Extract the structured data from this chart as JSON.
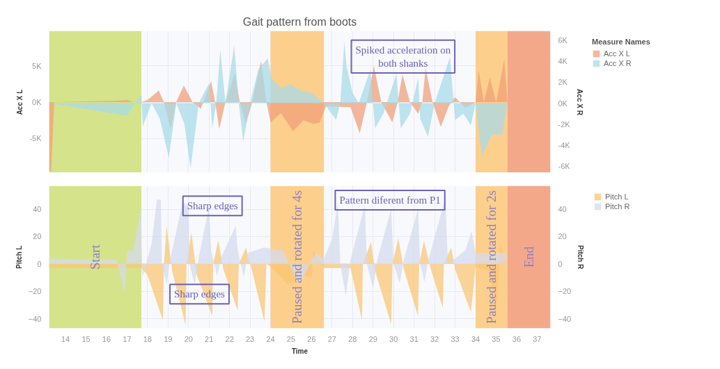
{
  "chart_data": [
    {
      "type": "area",
      "title": "Gait pattern from boots",
      "ylabel": "Acc X L",
      "y2label": "Acc X R",
      "legend_title": "Measure Names",
      "legend": "right",
      "grid": true,
      "tick_labels": "y",
      "xlim": [
        13.2,
        37.65
      ],
      "xticks": [
        14,
        15,
        16,
        17,
        18,
        19,
        20,
        21,
        22,
        23,
        24,
        25,
        26,
        27,
        28,
        29,
        30,
        31,
        32,
        33,
        34,
        35,
        36,
        37
      ],
      "ylim": [
        -9800,
        9800
      ],
      "yticks": [
        {
          "value": -5000,
          "label": "-5K"
        },
        {
          "value": 0,
          "label": "0K"
        },
        {
          "value": 5000,
          "label": "5K"
        }
      ],
      "y2lim": [
        -6700,
        6900
      ],
      "y2ticks": [
        {
          "value": -6000,
          "label": "-6K"
        },
        {
          "value": -4000,
          "label": "-4K"
        },
        {
          "value": -2000,
          "label": "-2K"
        },
        {
          "value": 0,
          "label": "0K"
        },
        {
          "value": 2000,
          "label": "2K"
        },
        {
          "value": 4000,
          "label": "4K"
        },
        {
          "value": 6000,
          "label": "6K"
        }
      ],
      "bands": [
        {
          "axis": "x",
          "from": 13.2,
          "to": 17.7,
          "color": "#d5e38b"
        },
        {
          "axis": "x",
          "from": 24.0,
          "to": 26.6,
          "color": "#fdcf8c"
        },
        {
          "axis": "x",
          "from": 34.0,
          "to": 35.55,
          "color": "#fdcf8c"
        },
        {
          "axis": "x",
          "from": 35.55,
          "to": 37.65,
          "color": "#f4a88a"
        }
      ],
      "annotations": [
        "Spiked acceleration on\nboth shanks"
      ],
      "series": [
        {
          "name": "Acc X L",
          "color": "#f0a07a",
          "x": [
            13.2,
            13.3,
            13.45,
            13.6,
            16.5,
            17.0,
            17.3,
            17.7,
            18.0,
            18.55,
            18.8,
            19.13,
            19.4,
            19.77,
            20.2,
            20.6,
            21.1,
            21.3,
            21.5,
            21.8,
            22.26,
            22.5,
            22.8,
            23.1,
            23.54,
            23.8,
            24.0,
            24.5,
            25.1,
            25.6,
            26.1,
            26.4,
            26.7,
            27.9,
            28.35,
            28.7,
            29.04,
            29.4,
            29.94,
            30.2,
            30.43,
            30.8,
            31.2,
            31.4,
            31.56,
            31.9,
            32.3,
            32.7,
            33.0,
            33.5,
            34.0,
            34.15,
            34.4,
            34.7,
            35.0,
            35.4,
            35.55
          ],
          "values": [
            -9500,
            -9500,
            0,
            0,
            200,
            300,
            0,
            0,
            300,
            1600,
            0,
            -3700,
            0,
            2300,
            0,
            -900,
            2900,
            0,
            -3700,
            0,
            4000,
            0,
            -3000,
            0,
            5700,
            0,
            -2800,
            -1500,
            -4000,
            -2500,
            -3000,
            -2800,
            -600,
            -700,
            -4300,
            0,
            5000,
            0,
            -2800,
            0,
            3800,
            0,
            -1600,
            0,
            4700,
            0,
            -3400,
            -500,
            700,
            -800,
            0,
            4400,
            0,
            3400,
            0,
            5900,
            0
          ]
        },
        {
          "name": "Acc X R",
          "color": "#a8dbe8",
          "axis": "y2",
          "x": [
            13.2,
            17.0,
            17.4,
            17.7,
            17.77,
            18.2,
            18.6,
            19.04,
            19.4,
            19.8,
            20.1,
            20.5,
            21.0,
            21.16,
            21.35,
            21.55,
            21.8,
            22.23,
            22.45,
            22.67,
            23.0,
            23.4,
            23.86,
            24.06,
            24.5,
            25.0,
            25.5,
            26.0,
            26.6,
            27.2,
            27.4,
            27.6,
            27.7,
            28.0,
            28.3,
            28.87,
            29.1,
            29.5,
            30.14,
            30.35,
            30.8,
            31.2,
            31.3,
            31.68,
            32.0,
            32.75,
            33.0,
            33.4,
            33.77,
            34.0,
            34.3,
            34.8,
            35.3,
            35.55
          ],
          "values": [
            0,
            -1200,
            0,
            800,
            -2200,
            0,
            -1500,
            -5200,
            0,
            -2000,
            -6200,
            0,
            1900,
            -2400,
            0,
            5100,
            0,
            5500,
            0,
            -3700,
            0,
            3200,
            4300,
            2300,
            1500,
            1800,
            1200,
            1000,
            0,
            -1600,
            0,
            5900,
            3600,
            1000,
            0,
            3200,
            -2400,
            -1000,
            2800,
            -2400,
            -1000,
            2400,
            -1500,
            -3200,
            0,
            4400,
            -1600,
            -1000,
            -2100,
            0,
            -5100,
            -3000,
            -3000,
            0
          ]
        }
      ]
    },
    {
      "type": "area",
      "xlabel": "Time",
      "ylabel": "Pitch L",
      "y2label": "Pitch R",
      "legend": "right",
      "grid": true,
      "xlim": [
        13.2,
        37.65
      ],
      "xticks": [
        14,
        15,
        16,
        17,
        18,
        19,
        20,
        21,
        22,
        23,
        24,
        25,
        26,
        27,
        28,
        29,
        30,
        31,
        32,
        33,
        34,
        35,
        36,
        37
      ],
      "ylim": [
        -47,
        57
      ],
      "yticks": [
        -40,
        -20,
        0,
        20,
        40
      ],
      "y2lim": [
        -47,
        57
      ],
      "y2ticks": [
        -40,
        -20,
        0,
        20,
        40
      ],
      "bands": [
        {
          "axis": "x",
          "from": 13.2,
          "to": 17.7,
          "color": "#d5e38b",
          "label": "Start"
        },
        {
          "axis": "x",
          "from": 24.0,
          "to": 26.6,
          "color": "#fdcf8c",
          "label": "Paused and rotated for 4s"
        },
        {
          "axis": "x",
          "from": 34.0,
          "to": 35.55,
          "color": "#fdcf8c",
          "label": "Paused and rotated for 2s"
        },
        {
          "axis": "x",
          "from": 35.55,
          "to": 37.65,
          "color": "#f4a88a",
          "label": "End"
        }
      ],
      "annotations": [
        "Sharp edges",
        "Sharp edges",
        "Pattern diferent from P1"
      ],
      "series": [
        {
          "name": "Pitch L",
          "color": "#f9c574",
          "x": [
            13.2,
            17.7,
            18.0,
            18.75,
            18.8,
            18.93,
            19.2,
            19.86,
            19.9,
            20.14,
            20.4,
            21.16,
            21.2,
            21.45,
            21.7,
            22.4,
            22.45,
            22.8,
            23.1,
            23.7,
            23.8,
            24.0,
            24.84,
            25.5,
            26.0,
            26.1,
            26.6,
            27.9,
            28.46,
            28.5,
            28.9,
            29.1,
            29.88,
            29.95,
            30.23,
            30.5,
            31.19,
            31.25,
            31.48,
            31.8,
            32.4,
            32.45,
            32.81,
            33.0,
            33.77,
            34.0,
            34.6,
            35.04,
            35.2,
            35.55
          ],
          "values": [
            -3,
            -3,
            -8,
            -41,
            0,
            28,
            -5,
            -45,
            0,
            23,
            -8,
            -38,
            0,
            17,
            -4,
            -34,
            0,
            12,
            -5,
            -42,
            0,
            -2,
            -15,
            -8,
            -10,
            10,
            -3,
            -3,
            -41,
            0,
            16,
            -5,
            -44,
            0,
            19,
            -4,
            -38,
            0,
            17,
            -3,
            -32,
            0,
            12,
            -4,
            -35,
            -2,
            -5,
            -30,
            15,
            0
          ]
        },
        {
          "name": "Pitch R",
          "color": "#d4dbec",
          "axis": "y2",
          "x": [
            13.2,
            16.5,
            16.9,
            17.0,
            17.3,
            17.68,
            17.75,
            18.2,
            18.46,
            18.65,
            18.7,
            18.93,
            19.1,
            19.71,
            20.0,
            20.05,
            20.3,
            20.5,
            21.0,
            21.1,
            21.4,
            21.6,
            22.3,
            22.4,
            22.7,
            22.9,
            23.67,
            24.6,
            25.4,
            26.2,
            26.6,
            27.0,
            27.28,
            27.4,
            27.67,
            27.9,
            28.6,
            28.7,
            29.0,
            29.2,
            29.88,
            30.0,
            30.3,
            30.5,
            31.19,
            31.3,
            31.5,
            31.7,
            32.52,
            32.65,
            33.0,
            33.5,
            33.8,
            34.0,
            35.5
          ],
          "values": [
            4,
            3,
            -22,
            10,
            10,
            41,
            -10,
            15,
            47,
            47,
            0,
            -15,
            3,
            45,
            42,
            0,
            -15,
            5,
            42,
            10,
            -9,
            5,
            28,
            10,
            -10,
            8,
            12,
            10,
            -15,
            8,
            4,
            18,
            45,
            0,
            -23,
            3,
            43,
            0,
            -18,
            3,
            40,
            0,
            -14,
            3,
            40,
            0,
            -13,
            3,
            48,
            0,
            4,
            10,
            24,
            8,
            8
          ]
        }
      ]
    }
  ]
}
